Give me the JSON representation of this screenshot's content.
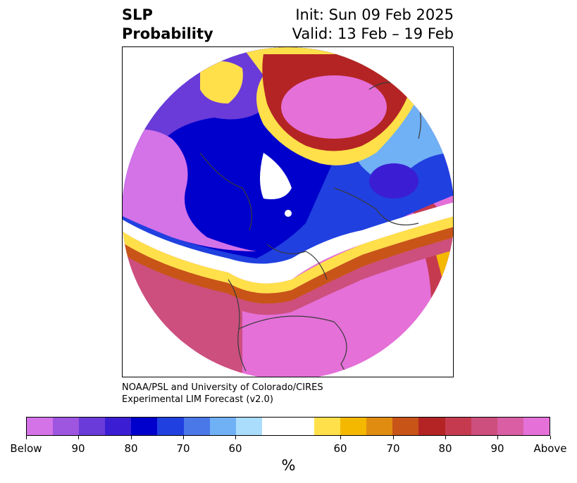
{
  "title": {
    "left_line1": "SLP",
    "left_line2": "Probability",
    "right_line1": "Init: Sun 09 Feb 2025",
    "right_line2": "Valid: 13 Feb – 19 Feb"
  },
  "credit": {
    "line1": "NOAA/PSL and University of Colorado/CIRES",
    "line2": "Experimental LIM Forecast (v2.0)"
  },
  "colorbar": {
    "colors": [
      "#d472e8",
      "#9e55e0",
      "#6a3bd8",
      "#3b1ed4",
      "#0000cc",
      "#2040e0",
      "#4a78e8",
      "#70b0f4",
      "#aadcfc",
      "#ffffff",
      "#ffffff",
      "#ffe04a",
      "#f4b800",
      "#e08c10",
      "#c85418",
      "#b42424",
      "#c63a50",
      "#cc4f7d",
      "#da5ea4",
      "#e470d8"
    ],
    "tick_labels": [
      "Below",
      "90",
      "80",
      "70",
      "60",
      "60",
      "70",
      "80",
      "90",
      "Above"
    ],
    "unit": "%"
  },
  "legend_colors": {
    "below_strong": "#d472e8",
    "below_mid": "#0000cc",
    "neutral": "#ffffff",
    "above_mid": "#c85418",
    "above_strong": "#e470d8"
  }
}
